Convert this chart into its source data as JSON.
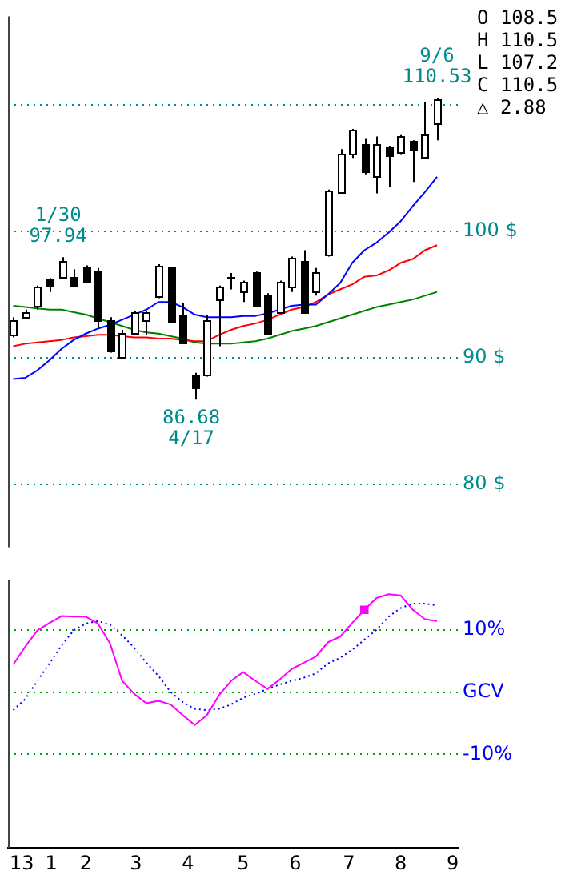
{
  "chart_data": [
    {
      "type": "candlestick",
      "x": [
        "2013-01-04",
        "2013-01-11",
        "2013-01-18",
        "2013-01-25",
        "2013-02-01",
        "2013-02-08",
        "2013-02-15",
        "2013-02-22",
        "2013-03-01",
        "2013-03-08",
        "2013-03-15",
        "2013-03-22",
        "2013-03-29",
        "2013-04-05",
        "2013-04-12",
        "2013-04-19",
        "2013-04-26",
        "2013-05-03",
        "2013-05-10",
        "2013-05-17",
        "2013-05-24",
        "2013-05-31",
        "2013-06-07",
        "2013-06-14",
        "2013-06-21",
        "2013-06-28",
        "2013-07-05",
        "2013-07-12",
        "2013-07-19",
        "2013-07-26",
        "2013-08-02",
        "2013-08-09",
        "2013-08-16",
        "2013-08-23",
        "2013-08-30",
        "2013-09-06"
      ],
      "ohlc": [
        [
          91.8,
          93.2,
          91.6,
          93.0
        ],
        [
          93.2,
          93.8,
          93.1,
          93.6
        ],
        [
          94.1,
          95.7,
          93.8,
          95.6
        ],
        [
          96.3,
          96.3,
          95.2,
          95.8
        ],
        [
          96.4,
          97.94,
          96.3,
          97.7
        ],
        [
          96.4,
          97.0,
          95.8,
          95.8
        ],
        [
          97.1,
          97.3,
          95.9,
          96.0
        ],
        [
          96.9,
          97.1,
          92.4,
          93.0
        ],
        [
          93.0,
          93.2,
          90.4,
          90.6
        ],
        [
          90.0,
          92.2,
          89.9,
          92.0
        ],
        [
          92.0,
          93.7,
          91.9,
          93.6
        ],
        [
          93.0,
          93.7,
          91.8,
          93.6
        ],
        [
          94.8,
          97.4,
          94.7,
          97.3
        ],
        [
          97.1,
          97.2,
          92.7,
          92.8
        ],
        [
          93.4,
          94.3,
          91.1,
          91.2
        ],
        [
          88.7,
          88.8,
          86.68,
          87.7
        ],
        [
          88.7,
          93.4,
          88.5,
          93.0
        ],
        [
          94.6,
          95.7,
          90.9,
          95.6
        ],
        [
          96.4,
          96.7,
          95.4,
          96.4
        ],
        [
          95.2,
          96.1,
          94.4,
          96.0
        ],
        [
          96.7,
          96.8,
          94.0,
          94.1
        ],
        [
          95.0,
          95.1,
          91.9,
          92.0
        ],
        [
          93.6,
          96.1,
          93.5,
          96.0
        ],
        [
          95.6,
          98.0,
          95.2,
          97.9
        ],
        [
          97.7,
          98.5,
          93.5,
          93.6
        ],
        [
          95.2,
          97.1,
          94.9,
          96.7
        ],
        [
          98.1,
          103.3,
          98.0,
          103.2
        ],
        [
          103.1,
          106.5,
          103.0,
          106.1
        ],
        [
          106.1,
          108.1,
          105.8,
          108.0
        ],
        [
          106.9,
          107.3,
          104.5,
          104.7
        ],
        [
          104.4,
          107.5,
          103.0,
          106.9
        ],
        [
          106.6,
          106.7,
          103.5,
          106.0
        ],
        [
          106.2,
          107.6,
          106.1,
          107.5
        ],
        [
          107.1,
          107.2,
          103.9,
          106.5
        ],
        [
          105.9,
          110.2,
          105.8,
          107.7
        ],
        [
          108.5,
          110.53,
          107.2,
          110.5
        ]
      ],
      "series": [
        {
          "type": "line",
          "color": "#0000ff",
          "values": [
            88.3,
            88.4,
            89.0,
            89.8,
            90.7,
            91.4,
            91.9,
            92.3,
            92.6,
            93.0,
            93.4,
            93.8,
            94.4,
            94.4,
            94.0,
            93.4,
            93.2,
            93.2,
            93.2,
            93.3,
            93.3,
            93.5,
            93.8,
            94.1,
            94.2,
            94.2,
            95.0,
            95.9,
            97.5,
            98.5,
            99.1,
            99.9,
            100.8,
            102.0,
            103.1,
            104.3
          ]
        },
        {
          "type": "line",
          "color": "#ff0000",
          "values": [
            90.9,
            91.1,
            91.2,
            91.3,
            91.4,
            91.6,
            91.7,
            91.8,
            91.8,
            91.7,
            91.6,
            91.6,
            91.5,
            91.5,
            91.4,
            91.3,
            91.3,
            91.8,
            92.2,
            92.5,
            92.7,
            93.0,
            93.4,
            93.8,
            94.0,
            94.4,
            95.0,
            95.4,
            95.8,
            96.4,
            96.5,
            96.9,
            97.5,
            97.8,
            98.5,
            98.9
          ]
        },
        {
          "type": "line",
          "color": "#008000",
          "values": [
            94.1,
            94.0,
            93.9,
            93.8,
            93.8,
            93.6,
            93.4,
            93.1,
            92.8,
            92.5,
            92.2,
            92.0,
            91.9,
            91.7,
            91.5,
            91.2,
            91.1,
            91.1,
            91.1,
            91.2,
            91.3,
            91.5,
            91.8,
            92.1,
            92.3,
            92.5,
            92.8,
            93.1,
            93.4,
            93.7,
            94.0,
            94.2,
            94.4,
            94.6,
            94.9,
            95.2
          ]
        }
      ],
      "xlim": [
        "2013-01-01",
        "2013-09-18"
      ],
      "ylim": [
        75,
        117
      ],
      "yticks": [
        {
          "value": 80,
          "label": "80 $"
        },
        {
          "value": 90,
          "label": "90 $"
        },
        {
          "value": 100,
          "label": "100 $"
        },
        {
          "value": 110,
          "label": null
        }
      ],
      "grid": "y",
      "tick_labels": "y",
      "marker": "none",
      "annotations": [
        "O 108.5",
        "H 110.5",
        "L 107.2",
        "C 110.5",
        "△ 2.88",
        {
          "text": "1/30\n97.94",
          "x": "2013-01-30",
          "y": 97.94
        },
        {
          "text": "86.68\n4/17",
          "x": "2013-04-17",
          "y": 86.68
        },
        {
          "text": "9/6\n110.53",
          "x": "2013-09-06",
          "y": 110.53
        }
      ]
    },
    {
      "type": "line",
      "x": [
        "2013-01-04",
        "2013-01-11",
        "2013-01-18",
        "2013-01-25",
        "2013-02-01",
        "2013-02-08",
        "2013-02-15",
        "2013-02-22",
        "2013-03-01",
        "2013-03-08",
        "2013-03-15",
        "2013-03-22",
        "2013-03-29",
        "2013-04-05",
        "2013-04-12",
        "2013-04-19",
        "2013-04-26",
        "2013-05-03",
        "2013-05-10",
        "2013-05-17",
        "2013-05-24",
        "2013-05-31",
        "2013-06-07",
        "2013-06-14",
        "2013-06-21",
        "2013-06-28",
        "2013-07-05",
        "2013-07-12",
        "2013-07-19",
        "2013-07-26",
        "2013-08-02",
        "2013-08-09",
        "2013-08-16",
        "2013-08-23",
        "2013-08-30",
        "2013-09-06"
      ],
      "series": [
        {
          "color": "#ff00ff",
          "line_style": "solid",
          "values": [
            4.4,
            7.3,
            9.9,
            11.1,
            12.2,
            12.1,
            12.1,
            11.0,
            7.8,
            1.8,
            -0.3,
            -1.8,
            -1.4,
            -2.0,
            -3.7,
            -5.3,
            -3.7,
            -0.5,
            1.8,
            3.2,
            1.8,
            0.5,
            2.0,
            3.7,
            4.7,
            5.7,
            8.0,
            8.9,
            11.1,
            13.2,
            15.1,
            15.7,
            15.5,
            13.2,
            11.7,
            11.4
          ]
        },
        {
          "color": "#0000ff",
          "line_style": "dotted",
          "values": [
            -2.9,
            -1.1,
            1.8,
            4.6,
            7.5,
            9.9,
            11.0,
            11.4,
            10.8,
            9.1,
            7.1,
            4.7,
            2.6,
            0.0,
            -1.6,
            -2.7,
            -2.9,
            -2.7,
            -2.0,
            -0.9,
            -0.3,
            0.5,
            1.2,
            1.8,
            2.3,
            3.0,
            4.6,
            5.5,
            6.8,
            8.4,
            10.0,
            12.1,
            13.5,
            14.2,
            14.2,
            13.9
          ]
        },
        {
          "type": "scatter",
          "marker": "square",
          "color": "#ff00ff",
          "x": [
            "2013-07-26"
          ],
          "values": [
            13.2
          ]
        }
      ],
      "xlim": [
        "2013-01-01",
        "2013-09-18"
      ],
      "xticks": [
        {
          "value": "2013-01-09",
          "label": "13"
        },
        {
          "value": "2013-01-26",
          "label": "1"
        },
        {
          "value": "2013-02-15",
          "label": "2"
        },
        {
          "value": "2013-03-16",
          "label": "3"
        },
        {
          "value": "2013-04-15",
          "label": "4"
        },
        {
          "value": "2013-05-17",
          "label": "5"
        },
        {
          "value": "2013-06-16",
          "label": "6"
        },
        {
          "value": "2013-07-17",
          "label": "7"
        },
        {
          "value": "2013-08-16",
          "label": "8"
        },
        {
          "value": "2013-09-15",
          "label": "9"
        }
      ],
      "ylim": [
        -25,
        18
      ],
      "yticks": [
        {
          "value": 10,
          "label": "10%"
        },
        {
          "value": 0,
          "label": "GCV"
        },
        {
          "value": -10,
          "label": "-10%"
        }
      ],
      "grid": "y",
      "marker": "none"
    }
  ]
}
